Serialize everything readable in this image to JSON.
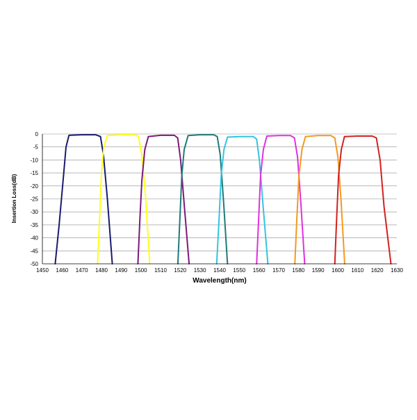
{
  "chart_data": {
    "type": "line",
    "title": "",
    "xlabel": "Wavelength(nm)",
    "ylabel": "Insertion Loss(dB)",
    "xlim": [
      1450,
      1630
    ],
    "ylim": [
      -50,
      0
    ],
    "xticks": [
      1450,
      1460,
      1470,
      1480,
      1490,
      1500,
      1510,
      1520,
      1530,
      1540,
      1550,
      1560,
      1570,
      1580,
      1590,
      1600,
      1610,
      1620,
      1630
    ],
    "yticks": [
      0,
      -5,
      -10,
      -15,
      -20,
      -25,
      -30,
      -35,
      -40,
      -45,
      -50
    ],
    "grid": {
      "horizontal": true,
      "vertical": false
    },
    "legend": "none",
    "series": [
      {
        "color": "#1a1a6e",
        "x": [
          1456.5,
          1458.5,
          1460.5,
          1462,
          1463.5,
          1470,
          1477,
          1479.5,
          1481,
          1483,
          1485.5
        ],
        "y": [
          -50,
          -35,
          -18,
          -5,
          -0.5,
          -0.3,
          -0.3,
          -1,
          -8,
          -25,
          -50
        ]
      },
      {
        "color": "#ffff1a",
        "x": [
          1478,
          1479.2,
          1480,
          1481.2,
          1483,
          1490,
          1497,
          1498.8,
          1500.5,
          1502.5,
          1504.5
        ],
        "y": [
          -50,
          -30,
          -15,
          -5,
          -0.6,
          -0.3,
          -0.3,
          -1,
          -8,
          -25,
          -50
        ]
      },
      {
        "color": "#7a1a7a",
        "x": [
          1498.5,
          1499.5,
          1500.5,
          1502,
          1503.8,
          1510,
          1517,
          1518.7,
          1520.2,
          1522,
          1524.5
        ],
        "y": [
          -50,
          -33,
          -18,
          -6,
          -1,
          -0.5,
          -0.5,
          -1.5,
          -10,
          -27,
          -50
        ]
      },
      {
        "color": "#1f7a78",
        "x": [
          1518.8,
          1519.8,
          1520.8,
          1522,
          1524,
          1530,
          1537,
          1538.8,
          1540.3,
          1542,
          1544
        ],
        "y": [
          -50,
          -33,
          -16,
          -6,
          -0.6,
          -0.3,
          -0.3,
          -1,
          -8,
          -26,
          -50
        ]
      },
      {
        "color": "#33c4e0",
        "x": [
          1538.5,
          1539.7,
          1540.8,
          1542.2,
          1544,
          1550,
          1557,
          1558.8,
          1560.2,
          1562,
          1564.5
        ],
        "y": [
          -50,
          -33,
          -16,
          -6,
          -1.2,
          -1,
          -1,
          -2,
          -10,
          -27,
          -50
        ]
      },
      {
        "color": "#e030e0",
        "x": [
          1558.8,
          1559.8,
          1560.8,
          1562.2,
          1564,
          1570,
          1576,
          1578,
          1579.6,
          1581.2,
          1583.2
        ],
        "y": [
          -50,
          -33,
          -16,
          -6,
          -0.8,
          -0.6,
          -0.6,
          -1.5,
          -9,
          -26,
          -50
        ]
      },
      {
        "color": "#f29a1e",
        "x": [
          1578.2,
          1579.2,
          1580.3,
          1581.8,
          1583.6,
          1590,
          1596.5,
          1598.5,
          1600.1,
          1601.7,
          1603.5
        ],
        "y": [
          -50,
          -33,
          -16,
          -6,
          -1,
          -0.6,
          -0.6,
          -1.5,
          -9,
          -26,
          -50
        ]
      },
      {
        "color": "#d42020",
        "x": [
          1598.5,
          1599.4,
          1600.4,
          1601.8,
          1603.4,
          1610,
          1617.5,
          1619.6,
          1621.5,
          1623.5,
          1627
        ],
        "y": [
          -50,
          -33,
          -16,
          -6,
          -1,
          -0.8,
          -0.8,
          -1.5,
          -10,
          -28,
          -50
        ]
      }
    ]
  }
}
